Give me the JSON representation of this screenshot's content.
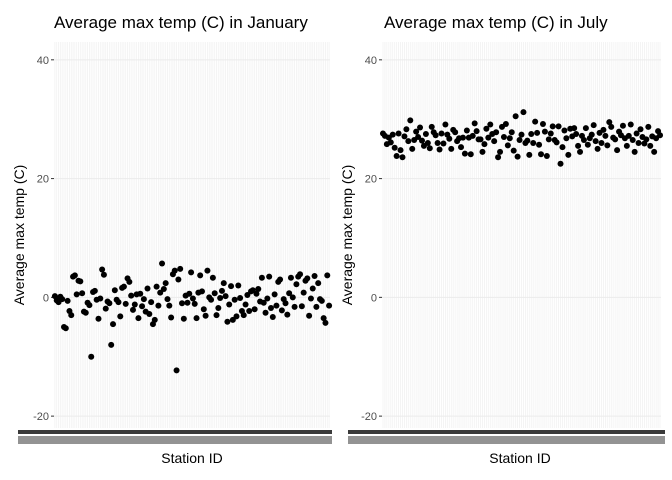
{
  "chart_data": [
    {
      "type": "scatter",
      "title": "Average max temp (C) in January",
      "xlabel": "Station ID",
      "ylabel": "Average max temp (C)",
      "ylim": [
        -22,
        43
      ],
      "yticks": [
        -20,
        0,
        20,
        40
      ],
      "x_is_categorical": true,
      "grid": true,
      "y": [
        0.2,
        -0.5,
        -0.8,
        0.1,
        -0.3,
        -5.0,
        -5.2,
        -0.6,
        -2.3,
        -3.0,
        3.5,
        3.7,
        0.5,
        2.8,
        2.7,
        0.7,
        -2.4,
        -2.6,
        -0.9,
        -1.3,
        -10.0,
        0.9,
        1.1,
        -0.4,
        -3.6,
        -0.2,
        4.7,
        3.8,
        -1.9,
        -0.7,
        -1.0,
        -8.0,
        -4.5,
        1.2,
        -0.4,
        -0.8,
        -3.2,
        1.6,
        1.8,
        -1.1,
        3.2,
        2.6,
        0.3,
        -2.1,
        -1.2,
        0.5,
        -3.5,
        0.6,
        -1.5,
        -0.3,
        -2.4,
        1.5,
        -2.8,
        -0.8,
        -4.5,
        -3.8,
        1.8,
        -1.4,
        0.8,
        5.7,
        1.4,
        2.4,
        -0.3,
        -1.4,
        -3.4,
        3.9,
        4.5,
        -12.3,
        3.0,
        4.8,
        -1.0,
        -3.6,
        0.3,
        -0.9,
        0.6,
        4.2,
        -0.2,
        -1.1,
        -3.5,
        0.8,
        3.7,
        1.0,
        -2.0,
        -3.1,
        4.5,
        0.0,
        -0.4,
        3.3,
        0.7,
        -3.0,
        -1.8,
        -0.1,
        1.1,
        2.4,
        0.2,
        -4.1,
        -1.2,
        1.9,
        -3.8,
        -0.4,
        -3.2,
        2.0,
        -0.1,
        -2.3,
        -3.0,
        -1.2,
        0.4,
        -2.3,
        1.0,
        1.2,
        -2.0,
        0.6,
        1.4,
        -0.7,
        3.3,
        -0.9,
        -2.6,
        -0.2,
        3.5,
        -1.8,
        -3.3,
        0.5,
        -1.4,
        2.6,
        3.0,
        -2.2,
        -0.3,
        -1.0,
        -2.9,
        0.7,
        3.3,
        0.0,
        -1.6,
        2.2,
        3.5,
        3.9,
        -1.5,
        0.8,
        2.8,
        3.2,
        -3.1,
        -0.2,
        1.5,
        3.6,
        -1.6,
        2.4,
        -0.3,
        -0.6,
        -3.5,
        -4.3,
        3.7,
        -1.4
      ]
    },
    {
      "type": "scatter",
      "title": "Average max temp (C) in July",
      "xlabel": "Station ID",
      "ylabel": "Average max temp (C)",
      "ylim": [
        -22,
        43
      ],
      "yticks": [
        -20,
        0,
        20,
        40
      ],
      "x_is_categorical": true,
      "grid": true,
      "y": [
        27.6,
        27.2,
        25.8,
        26.9,
        26.1,
        27.4,
        25.2,
        23.8,
        27.6,
        24.8,
        23.6,
        27.1,
        28.3,
        26.3,
        29.8,
        25.0,
        26.5,
        27.9,
        27.0,
        28.6,
        26.4,
        25.5,
        27.5,
        26.0,
        25.1,
        28.7,
        27.8,
        27.3,
        26.0,
        24.9,
        27.6,
        25.9,
        29.1,
        27.4,
        26.7,
        25.0,
        28.2,
        27.8,
        26.3,
        26.8,
        25.3,
        26.9,
        24.2,
        28.1,
        26.9,
        24.1,
        27.2,
        29.3,
        28.0,
        26.6,
        26.6,
        24.5,
        25.8,
        28.4,
        26.9,
        29.1,
        27.5,
        26.3,
        27.8,
        23.6,
        24.5,
        28.7,
        27.0,
        29.2,
        25.6,
        26.8,
        27.8,
        24.7,
        30.5,
        23.7,
        26.5,
        27.4,
        31.2,
        26.0,
        26.4,
        24.0,
        27.5,
        26.0,
        29.6,
        27.7,
        25.7,
        24.1,
        29.2,
        27.9,
        23.8,
        26.6,
        27.6,
        28.8,
        26.5,
        26.1,
        28.8,
        22.5,
        25.3,
        28.1,
        26.8,
        24.0,
        28.4,
        27.1,
        28.5,
        27.5,
        25.5,
        24.5,
        27.2,
        26.5,
        28.5,
        25.7,
        26.8,
        27.4,
        29.0,
        26.3,
        25.0,
        27.7,
        26.0,
        28.2,
        27.2,
        25.6,
        29.5,
        28.7,
        26.9,
        26.6,
        24.8,
        27.9,
        27.3,
        28.9,
        26.8,
        25.5,
        27.2,
        29.1,
        26.5,
        24.5,
        27.6,
        26.0,
        28.3,
        27.0,
        25.9,
        26.6,
        28.7,
        25.5,
        27.1,
        24.5,
        26.8,
        28.0,
        27.3
      ]
    }
  ]
}
